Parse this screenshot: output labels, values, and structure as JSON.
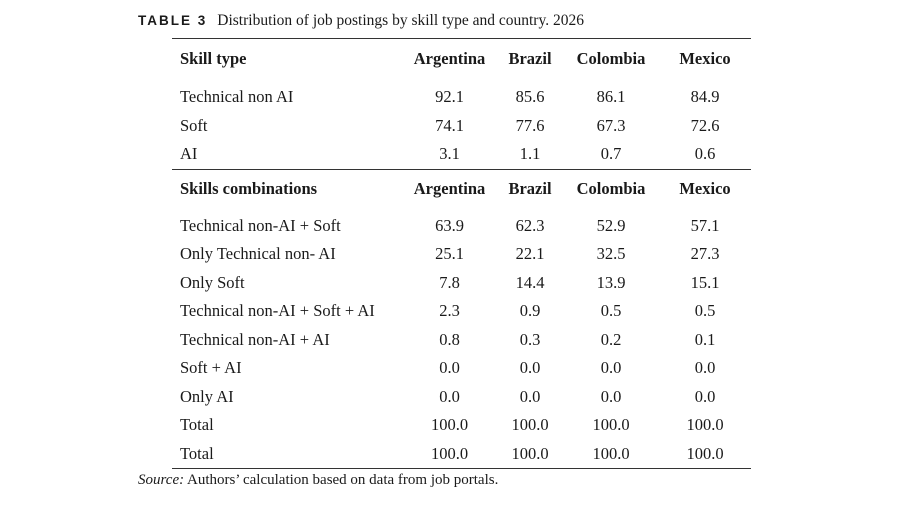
{
  "caption": {
    "label": "TABLE 3",
    "text": "Distribution of job postings by skill type and country. 2026"
  },
  "section1": {
    "header": [
      "Skill type",
      "Argentina",
      "Brazil",
      "Colombia",
      "Mexico"
    ],
    "rows": [
      [
        "Technical non AI",
        "92.1",
        "85.6",
        "86.1",
        "84.9"
      ],
      [
        "Soft",
        "74.1",
        "77.6",
        "67.3",
        "72.6"
      ],
      [
        "AI",
        "3.1",
        "1.1",
        "0.7",
        "0.6"
      ]
    ]
  },
  "section2": {
    "header": [
      "Skills combinations",
      "Argentina",
      "Brazil",
      "Colombia",
      "Mexico"
    ],
    "rows": [
      [
        "Technical non-AI + Soft",
        "63.9",
        "62.3",
        "52.9",
        "57.1"
      ],
      [
        "Only Technical non- AI",
        "25.1",
        "22.1",
        "32.5",
        "27.3"
      ],
      [
        "Only Soft",
        "7.8",
        "14.4",
        "13.9",
        "15.1"
      ],
      [
        "Technical non-AI + Soft + AI",
        "2.3",
        "0.9",
        "0.5",
        "0.5"
      ],
      [
        "Technical non-AI + AI",
        "0.8",
        "0.3",
        "0.2",
        "0.1"
      ],
      [
        "Soft + AI",
        "0.0",
        "0.0",
        "0.0",
        "0.0"
      ],
      [
        "Only AI",
        "0.0",
        "0.0",
        "0.0",
        "0.0"
      ],
      [
        "Total",
        "100.0",
        "100.0",
        "100.0",
        "100.0"
      ],
      [
        "Total",
        "100.0",
        "100.0",
        "100.0",
        "100.0"
      ]
    ]
  },
  "source": {
    "label": "Source:",
    "text": " Authors’ calculation based on data from job portals."
  }
}
